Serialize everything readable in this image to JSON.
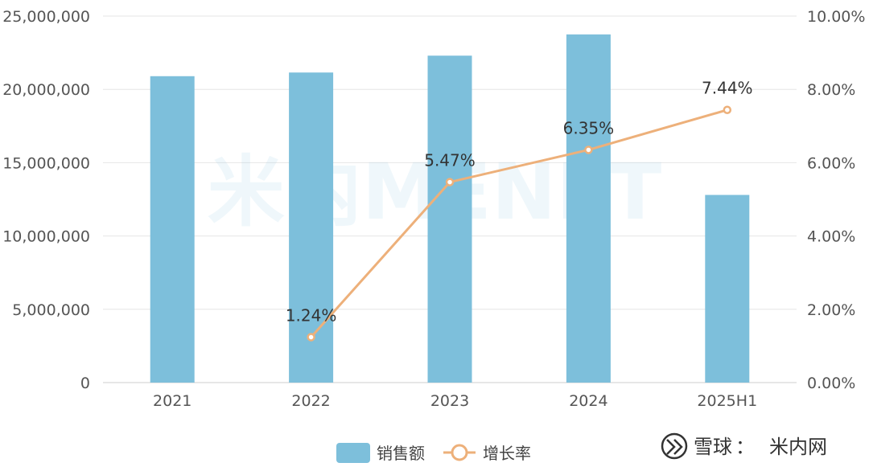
{
  "chart_data": {
    "type": "bar+line",
    "categories": [
      "2021",
      "2022",
      "2023",
      "2024",
      "2025H1"
    ],
    "series": [
      {
        "name": "销售额",
        "type": "bar",
        "axis": "left",
        "values": [
          20900000,
          21150000,
          22300000,
          23750000,
          12800000
        ]
      },
      {
        "name": "增长率",
        "type": "line",
        "axis": "right",
        "values": [
          null,
          1.24,
          5.47,
          6.35,
          7.44
        ],
        "labels": [
          "",
          "1.24%",
          "5.47%",
          "6.35%",
          "7.44%"
        ]
      }
    ],
    "y_left": {
      "min": 0,
      "max": 25000000,
      "ticks": [
        "0",
        "5,000,000",
        "10,000,000",
        "15,000,000",
        "20,000,000",
        "25,000,000"
      ]
    },
    "y_right": {
      "min": 0,
      "max": 10,
      "ticks": [
        "0.00%",
        "2.00%",
        "4.00%",
        "6.00%",
        "8.00%",
        "10.00%"
      ]
    },
    "grid": true,
    "legend_position": "bottom-center",
    "colors": {
      "bar": "#7dbfdb",
      "line": "#edb07a",
      "grid": "#e6e6e6"
    }
  },
  "watermark": "米内MENET",
  "footer": {
    "brand": "雪球",
    "separator": "：",
    "author": "米内网"
  }
}
